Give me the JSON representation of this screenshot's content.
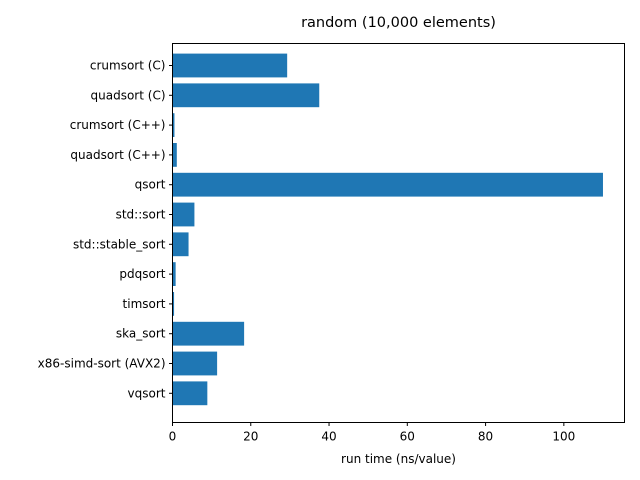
{
  "chart_data": {
    "type": "bar",
    "orientation": "horizontal",
    "title": "random (10,000 elements)",
    "xlabel": "run time (ns/value)",
    "ylabel": "",
    "xlim": [
      0,
      115.5
    ],
    "xticks": [
      0,
      20,
      40,
      60,
      80,
      100
    ],
    "grid": false,
    "bar_color": "#1f77b4",
    "categories": [
      "crumsort (C)",
      "quadsort (C)",
      "crumsort (C++)",
      "quadsort (C++)",
      "qsort",
      "std::sort",
      "std::stable_sort",
      "pdqsort",
      "timsort",
      "ska_sort",
      "x86-simd-sort (AVX2)",
      "vqsort"
    ],
    "values": [
      29.3,
      37.5,
      0.5,
      1.1,
      110.0,
      5.6,
      4.1,
      0.8,
      0.4,
      18.3,
      11.4,
      8.9
    ]
  }
}
